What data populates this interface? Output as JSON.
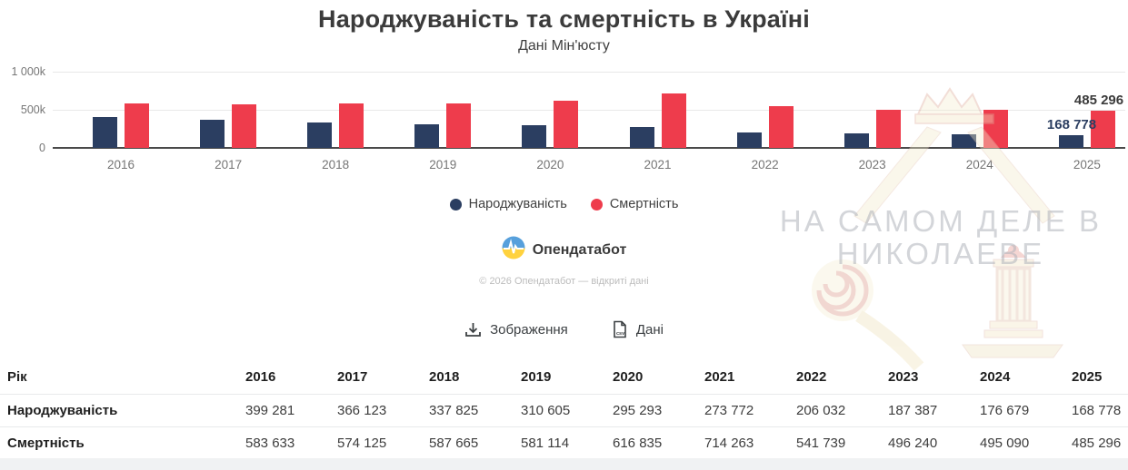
{
  "header": {
    "title": "Народжуваність та смертність в Україні",
    "subtitle": "Дані Мін'юсту"
  },
  "chart_data": {
    "type": "bar",
    "title": "Народжуваність та смертність в Україні",
    "subtitle": "Дані Мін'юсту",
    "categories": [
      "2016",
      "2017",
      "2018",
      "2019",
      "2020",
      "2021",
      "2022",
      "2023",
      "2024",
      "2025"
    ],
    "series": [
      {
        "name": "Народжуваність",
        "color": "#2b3e61",
        "values": [
          399281,
          366123,
          337825,
          310605,
          295293,
          273772,
          206032,
          187387,
          176679,
          168778
        ]
      },
      {
        "name": "Смертність",
        "color": "#ee3c4c",
        "values": [
          583633,
          574125,
          587665,
          581114,
          616835,
          714263,
          541739,
          496240,
          495090,
          485296
        ]
      }
    ],
    "ylim": [
      0,
      1000000
    ],
    "y_ticks": [
      {
        "label": "1 000k",
        "value": 1000000
      },
      {
        "label": "500k",
        "value": 500000
      },
      {
        "label": "0",
        "value": 0
      }
    ],
    "grid": true,
    "legend_position": "bottom",
    "last_point_labels": [
      {
        "series": "Народжуваність",
        "text": "168 778",
        "color": "#2b3e61"
      },
      {
        "series": "Смертність",
        "text": "485 296",
        "color": "#3b3b3b"
      }
    ]
  },
  "legend": {
    "items": [
      {
        "label": "Народжуваність",
        "color": "#2b3e61"
      },
      {
        "label": "Смертність",
        "color": "#ee3c4c"
      }
    ]
  },
  "branding": {
    "logo_text": "Опендатабот",
    "copyright": "© 2026 Опендатабот — відкриті дані",
    "logo_colors": {
      "blue": "#57a0dc",
      "yellow": "#ffd23e"
    }
  },
  "toolbar": {
    "image_button": "Зображення",
    "data_button": "Дані"
  },
  "table": {
    "row_header": "Рік",
    "columns": [
      "2016",
      "2017",
      "2018",
      "2019",
      "2020",
      "2021",
      "2022",
      "2023",
      "2024",
      "2025"
    ],
    "rows": [
      {
        "label": "Народжуваність",
        "values": [
          "399 281",
          "366 123",
          "337 825",
          "310 605",
          "295 293",
          "273 772",
          "206 032",
          "187 387",
          "176 679",
          "168 778"
        ]
      },
      {
        "label": "Смертність",
        "values": [
          "583 633",
          "574 125",
          "587 665",
          "581 114",
          "616 835",
          "714 263",
          "541 739",
          "496 240",
          "495 090",
          "485 296"
        ]
      }
    ]
  },
  "watermark": {
    "line1": "НА САМОМ ДЕЛЕ В",
    "line2": "НИКОЛАЕВЕ"
  }
}
